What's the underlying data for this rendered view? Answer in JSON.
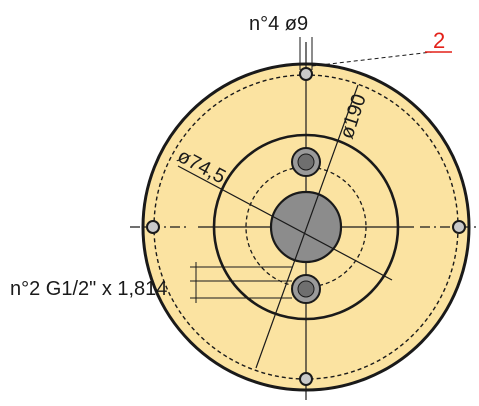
{
  "drawing": {
    "callout_number": "2",
    "labels": {
      "bolt_holes": "n°4 ø9",
      "bolt_circle_dia": "ø190",
      "inner_dia": "ø74,5",
      "ports": "n°2 G1/2\" x 1,814"
    },
    "colors": {
      "flange_fill": "#fbe3a1",
      "outline": "#1a1a1a",
      "hub_fill": "#8c8c8c",
      "port_fill": "#9a9a9a",
      "hole_fill": "#c9c9c9",
      "callout": "#e32119"
    },
    "features": {
      "bolt_hole_count": 4,
      "port_count": 2
    }
  }
}
